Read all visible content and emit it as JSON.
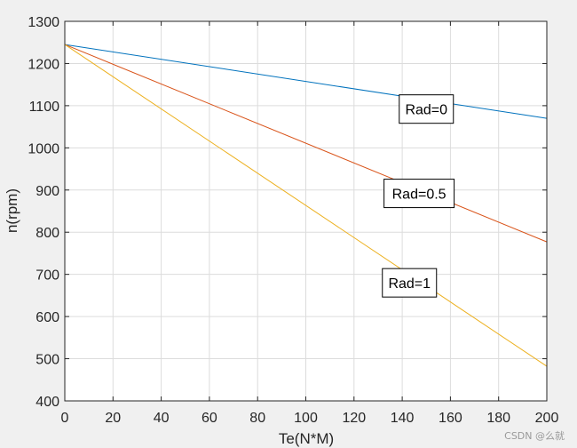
{
  "chart_data": {
    "type": "line",
    "xlabel": "Te(N*M)",
    "ylabel": "n(rpm)",
    "xlim": [
      0,
      200
    ],
    "ylim": [
      400,
      1300
    ],
    "xticks": [
      0,
      20,
      40,
      60,
      80,
      100,
      120,
      140,
      160,
      180,
      200
    ],
    "yticks": [
      400,
      500,
      600,
      700,
      800,
      900,
      1000,
      1100,
      1200,
      1300
    ],
    "grid": true,
    "x": [
      0,
      200
    ],
    "series": [
      {
        "values": [
          1245,
          1070
        ],
        "color": "#0072BD"
      },
      {
        "values": [
          1245,
          777
        ],
        "color": "#D95319"
      },
      {
        "values": [
          1245,
          482
        ],
        "color": "#EDB120"
      }
    ],
    "annotations": [
      {
        "text": "Rad=0",
        "x": 150,
        "y": 1092
      },
      {
        "text": "Rad=0.5",
        "x": 147,
        "y": 892
      },
      {
        "text": "Rad=1",
        "x": 143,
        "y": 680
      }
    ]
  },
  "watermark": "CSDN @么就"
}
